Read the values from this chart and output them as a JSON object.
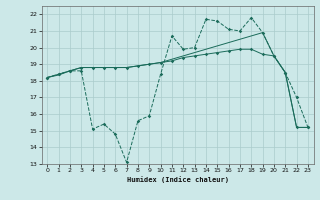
{
  "bg_color": "#cce8e8",
  "grid_color": "#aacccc",
  "line_color": "#1a6b5a",
  "xlabel": "Humidex (Indice chaleur)",
  "xlim": [
    -0.5,
    23.5
  ],
  "ylim": [
    13,
    22.5
  ],
  "yticks": [
    13,
    14,
    15,
    16,
    17,
    18,
    19,
    20,
    21,
    22
  ],
  "xticks": [
    0,
    1,
    2,
    3,
    4,
    5,
    6,
    7,
    8,
    9,
    10,
    11,
    12,
    13,
    14,
    15,
    16,
    17,
    18,
    19,
    20,
    21,
    22,
    23
  ],
  "line1_x": [
    0,
    1,
    2,
    3,
    4,
    5,
    6,
    7,
    8,
    9,
    10,
    11,
    12,
    13,
    14,
    15,
    16,
    17,
    18,
    19,
    20,
    21,
    22,
    23
  ],
  "line1_y": [
    18.2,
    18.4,
    18.6,
    18.6,
    15.1,
    15.4,
    14.8,
    13.1,
    15.6,
    15.9,
    18.4,
    20.7,
    19.9,
    20.0,
    21.7,
    21.6,
    21.1,
    21.0,
    21.8,
    20.9,
    19.5,
    18.5,
    17.0,
    15.2
  ],
  "line2_x": [
    0,
    1,
    2,
    3,
    4,
    5,
    6,
    7,
    8,
    9,
    10,
    11,
    12,
    13,
    14,
    15,
    16,
    17,
    18,
    19,
    20,
    21,
    22,
    23
  ],
  "line2_y": [
    18.2,
    18.4,
    18.6,
    18.8,
    18.8,
    18.8,
    18.8,
    18.8,
    18.9,
    19.0,
    19.1,
    19.2,
    19.4,
    19.5,
    19.6,
    19.7,
    19.8,
    19.9,
    19.9,
    19.6,
    19.5,
    18.5,
    15.2,
    15.2
  ],
  "line3_x": [
    0,
    1,
    2,
    3,
    4,
    5,
    6,
    7,
    8,
    9,
    10,
    11,
    12,
    13,
    14,
    15,
    16,
    17,
    18,
    19,
    20,
    21,
    22,
    23
  ],
  "line3_y": [
    18.2,
    18.35,
    18.6,
    18.8,
    18.8,
    18.8,
    18.8,
    18.8,
    18.9,
    19.0,
    19.1,
    19.3,
    19.5,
    19.7,
    19.9,
    20.1,
    20.3,
    20.5,
    20.7,
    20.9,
    19.5,
    18.5,
    15.2,
    15.2
  ]
}
